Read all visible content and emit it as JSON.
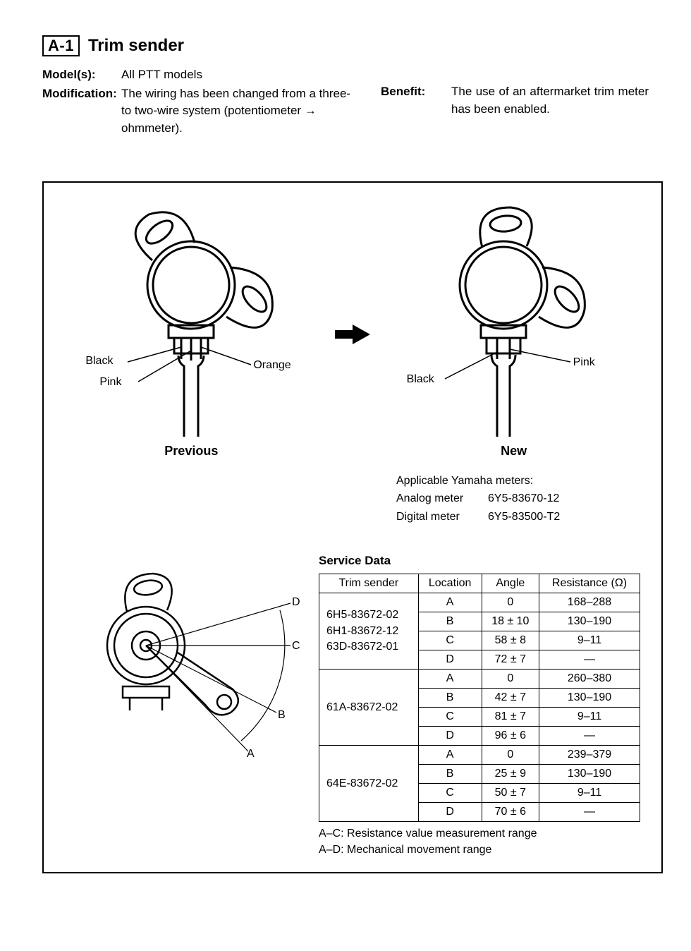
{
  "section": {
    "badge": "A-1",
    "title": "Trim sender"
  },
  "info": {
    "models_label": "Model(s):",
    "models_value": "All PTT models",
    "modification_label": "Modification:",
    "modification_value": "The wiring has been changed from a three- to two-wire system (potentiometer → ohmmeter).",
    "benefit_label": "Benefit:",
    "benefit_value": "The use of an aftermarket trim meter has been enabled."
  },
  "diagrams": {
    "previous": {
      "caption": "Previous",
      "wires": {
        "black": "Black",
        "pink": "Pink",
        "orange": "Orange"
      }
    },
    "new": {
      "caption": "New",
      "wires": {
        "black": "Black",
        "pink": "Pink"
      }
    }
  },
  "meters": {
    "heading": "Applicable Yamaha meters:",
    "rows": [
      {
        "label": "Analog meter",
        "part": "6Y5-83670-12"
      },
      {
        "label": "Digital meter",
        "part": "6Y5-83500-T2"
      }
    ]
  },
  "angle_diagram": {
    "labels": {
      "a": "A",
      "b": "B",
      "c": "C",
      "d": "D"
    }
  },
  "service": {
    "title": "Service Data",
    "headers": {
      "sender": "Trim sender",
      "location": "Location",
      "angle": "Angle",
      "resistance": "Resistance (Ω)"
    },
    "groups": [
      {
        "sender": "6H5-83672-02\n6H1-83672-12\n63D-83672-01",
        "rows": [
          {
            "loc": "A",
            "angle": "0",
            "res": "168–288"
          },
          {
            "loc": "B",
            "angle": "18 ± 10",
            "res": "130–190"
          },
          {
            "loc": "C",
            "angle": "58 ± 8",
            "res": "9–11"
          },
          {
            "loc": "D",
            "angle": "72 ± 7",
            "res": "—"
          }
        ]
      },
      {
        "sender": "61A-83672-02",
        "rows": [
          {
            "loc": "A",
            "angle": "0",
            "res": "260–380"
          },
          {
            "loc": "B",
            "angle": "42 ± 7",
            "res": "130–190"
          },
          {
            "loc": "C",
            "angle": "81 ± 7",
            "res": "9–11"
          },
          {
            "loc": "D",
            "angle": "96 ± 6",
            "res": "—"
          }
        ]
      },
      {
        "sender": "64E-83672-02",
        "rows": [
          {
            "loc": "A",
            "angle": "0",
            "res": "239–379"
          },
          {
            "loc": "B",
            "angle": "25 ± 9",
            "res": "130–190"
          },
          {
            "loc": "C",
            "angle": "50 ± 7",
            "res": "9–11"
          },
          {
            "loc": "D",
            "angle": "70 ± 6",
            "res": "—"
          }
        ]
      }
    ],
    "footnotes": {
      "ac": "A–C: Resistance value measurement range",
      "ad": "A–D: Mechanical movement range"
    }
  },
  "colors": {
    "stroke": "#000000",
    "fill": "#ffffff",
    "arrow_fill": "#000000"
  }
}
